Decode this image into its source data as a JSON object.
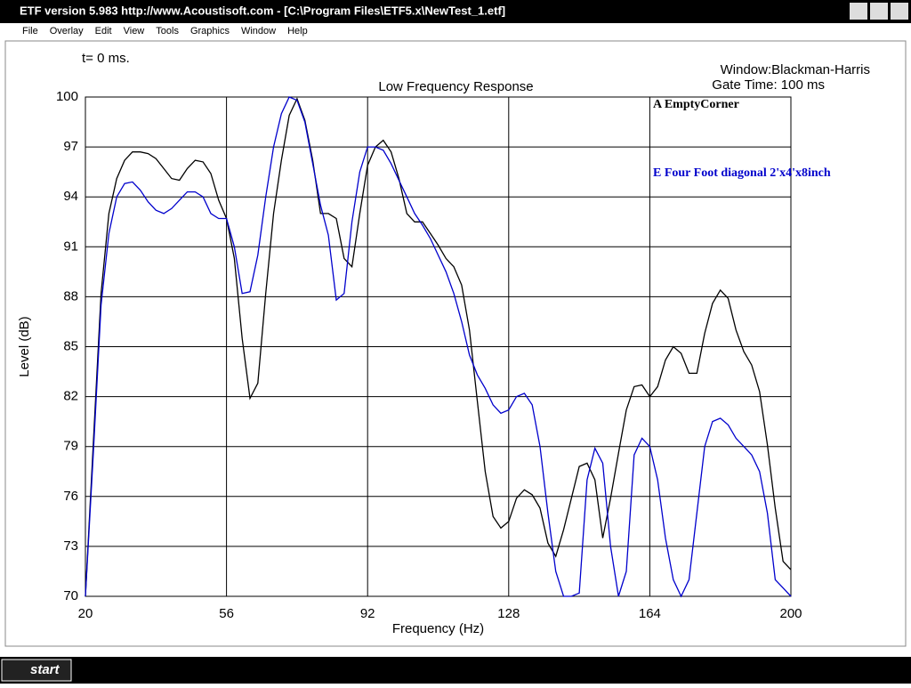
{
  "window": {
    "title": "ETF version 5.983 http://www.Acoustisoft.com - [C:\\Program Files\\ETF5.x\\NewTest_1.etf]",
    "menu": [
      "File",
      "Overlay",
      "Edit",
      "View",
      "Tools",
      "Graphics",
      "Window",
      "Help"
    ]
  },
  "taskbar": {
    "start": "start"
  },
  "chart_data": {
    "type": "line",
    "title": "Low Frequency Response",
    "x_label": "Frequency (Hz)",
    "y_label": "Level (dB)",
    "annotations": [
      "t= 0 ms.",
      "Window:Blackman-Harris",
      "Gate Time: 100 ms"
    ],
    "xlim": [
      20,
      200
    ],
    "xticks": [
      20,
      56,
      92,
      128,
      164,
      200
    ],
    "ylim": [
      70,
      100
    ],
    "yticks": [
      70,
      73,
      76,
      79,
      82,
      85,
      88,
      91,
      94,
      97,
      100
    ],
    "grid": true,
    "x": [
      20,
      22,
      24,
      26,
      28,
      30,
      32,
      34,
      36,
      38,
      40,
      42,
      44,
      46,
      48,
      50,
      52,
      54,
      56,
      58,
      60,
      62,
      64,
      66,
      68,
      70,
      72,
      74,
      76,
      78,
      80,
      82,
      84,
      86,
      88,
      90,
      92,
      94,
      96,
      98,
      100,
      102,
      104,
      106,
      108,
      110,
      112,
      114,
      116,
      118,
      120,
      122,
      124,
      126,
      128,
      130,
      132,
      134,
      136,
      138,
      140,
      142,
      144,
      146,
      148,
      150,
      152,
      154,
      156,
      158,
      160,
      162,
      164,
      166,
      168,
      170,
      172,
      174,
      176,
      178,
      180,
      182,
      184,
      186,
      188,
      190,
      192,
      194,
      196,
      198,
      200
    ],
    "series": [
      {
        "name": "A EmptyCorner",
        "color": "#000000",
        "values": [
          70,
          79.1,
          88.2,
          93,
          95.1,
          96.2,
          96.7,
          96.7,
          96.6,
          96.3,
          95.7,
          95.1,
          95,
          95.7,
          96.2,
          96.1,
          95.4,
          93.8,
          92.7,
          90.3,
          85.5,
          81.9,
          82.8,
          88.2,
          93,
          96.2,
          98.9,
          99.9,
          98.6,
          96.2,
          93,
          93,
          92.7,
          90.3,
          89.8,
          93,
          95.9,
          97,
          97.4,
          96.7,
          95.1,
          93,
          92.5,
          92.5,
          91.8,
          91.1,
          90.3,
          89.8,
          88.7,
          86,
          81.7,
          77.5,
          74.8,
          74.1,
          74.5,
          75.9,
          76.4,
          76.1,
          75.3,
          73.2,
          72.4,
          74,
          75.9,
          77.8,
          78,
          77,
          73.5,
          75.9,
          78.6,
          81.2,
          82.6,
          82.7,
          82,
          82.6,
          84.2,
          85,
          84.6,
          83.4,
          83.4,
          85.8,
          87.6,
          88.4,
          87.9,
          86,
          84.7,
          83.9,
          82.3,
          79.1,
          75.3,
          72.1,
          71.6
        ]
      },
      {
        "name": "E Four Foot diagonal 2'x4'x8inch",
        "color": "#0000cc",
        "values": [
          70,
          78.5,
          87.5,
          91.8,
          94,
          94.8,
          94.9,
          94.4,
          93.7,
          93.2,
          93,
          93.3,
          93.8,
          94.3,
          94.3,
          94,
          93,
          92.7,
          92.7,
          91,
          88.2,
          88.3,
          90.5,
          94,
          97,
          99,
          100,
          99.8,
          98.5,
          96,
          93.5,
          91.7,
          87.8,
          88.2,
          92.5,
          95.5,
          97,
          97,
          96.8,
          96,
          95,
          94,
          93,
          92.3,
          91.5,
          90.5,
          89.5,
          88.2,
          86.5,
          84.5,
          83.3,
          82.5,
          81.5,
          81,
          81.2,
          82,
          82.2,
          81.5,
          79,
          75,
          71.5,
          70,
          70,
          70.2,
          77,
          78.9,
          78,
          73,
          70,
          71.5,
          78.5,
          79.5,
          79,
          77,
          73.5,
          71,
          70,
          71,
          75,
          79,
          80.5,
          80.7,
          80.3,
          79.5,
          79,
          78.5,
          77.5,
          75,
          71,
          70.5,
          70
        ]
      }
    ]
  }
}
